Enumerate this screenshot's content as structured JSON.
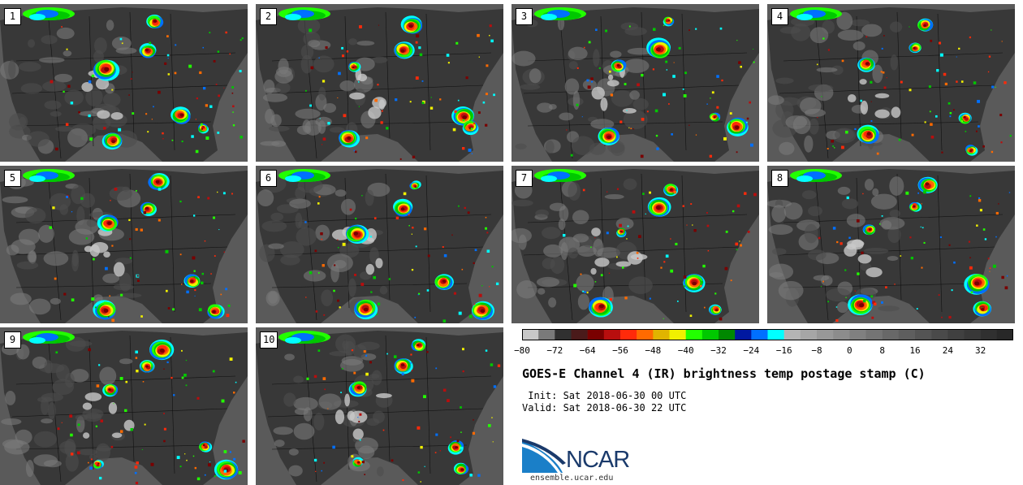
{
  "panels": [
    {
      "number": "1"
    },
    {
      "number": "2"
    },
    {
      "number": "3"
    },
    {
      "number": "4"
    },
    {
      "number": "5"
    },
    {
      "number": "6"
    },
    {
      "number": "7"
    },
    {
      "number": "8"
    },
    {
      "number": "9"
    },
    {
      "number": "10"
    }
  ],
  "colorbar": {
    "tick_labels": [
      "−80",
      "−72",
      "−64",
      "−56",
      "−48",
      "−40",
      "−32",
      "−24",
      "−16",
      "−8",
      "0",
      "8",
      "16",
      "24",
      "32"
    ],
    "colors": [
      "#c8c8c8",
      "#7a7a7a",
      "#303030",
      "#4a1a1a",
      "#7a0000",
      "#b80e0e",
      "#ff2a0a",
      "#ff6a00",
      "#e0b400",
      "#f0f000",
      "#22ff00",
      "#00c800",
      "#008800",
      "#0018a0",
      "#0070ff",
      "#00ffff",
      "#b4b4b4",
      "#a6a6a6",
      "#989898",
      "#8c8c8c",
      "#808080",
      "#747474",
      "#686868",
      "#5e5e5e",
      "#545454",
      "#4a4a4a",
      "#404040",
      "#383838",
      "#303030",
      "#282828"
    ]
  },
  "title": "GOES-E Channel 4 (IR) brightness temp postage stamp (C)",
  "init_line": " Init: Sat 2018-06-30 00 UTC",
  "valid_line": "Valid: Sat 2018-06-30 22 UTC",
  "logo": {
    "text": "NCAR",
    "url": "ensemble.ucar.edu",
    "color": "#1a3a6b",
    "accent": "#1a7fc8"
  }
}
